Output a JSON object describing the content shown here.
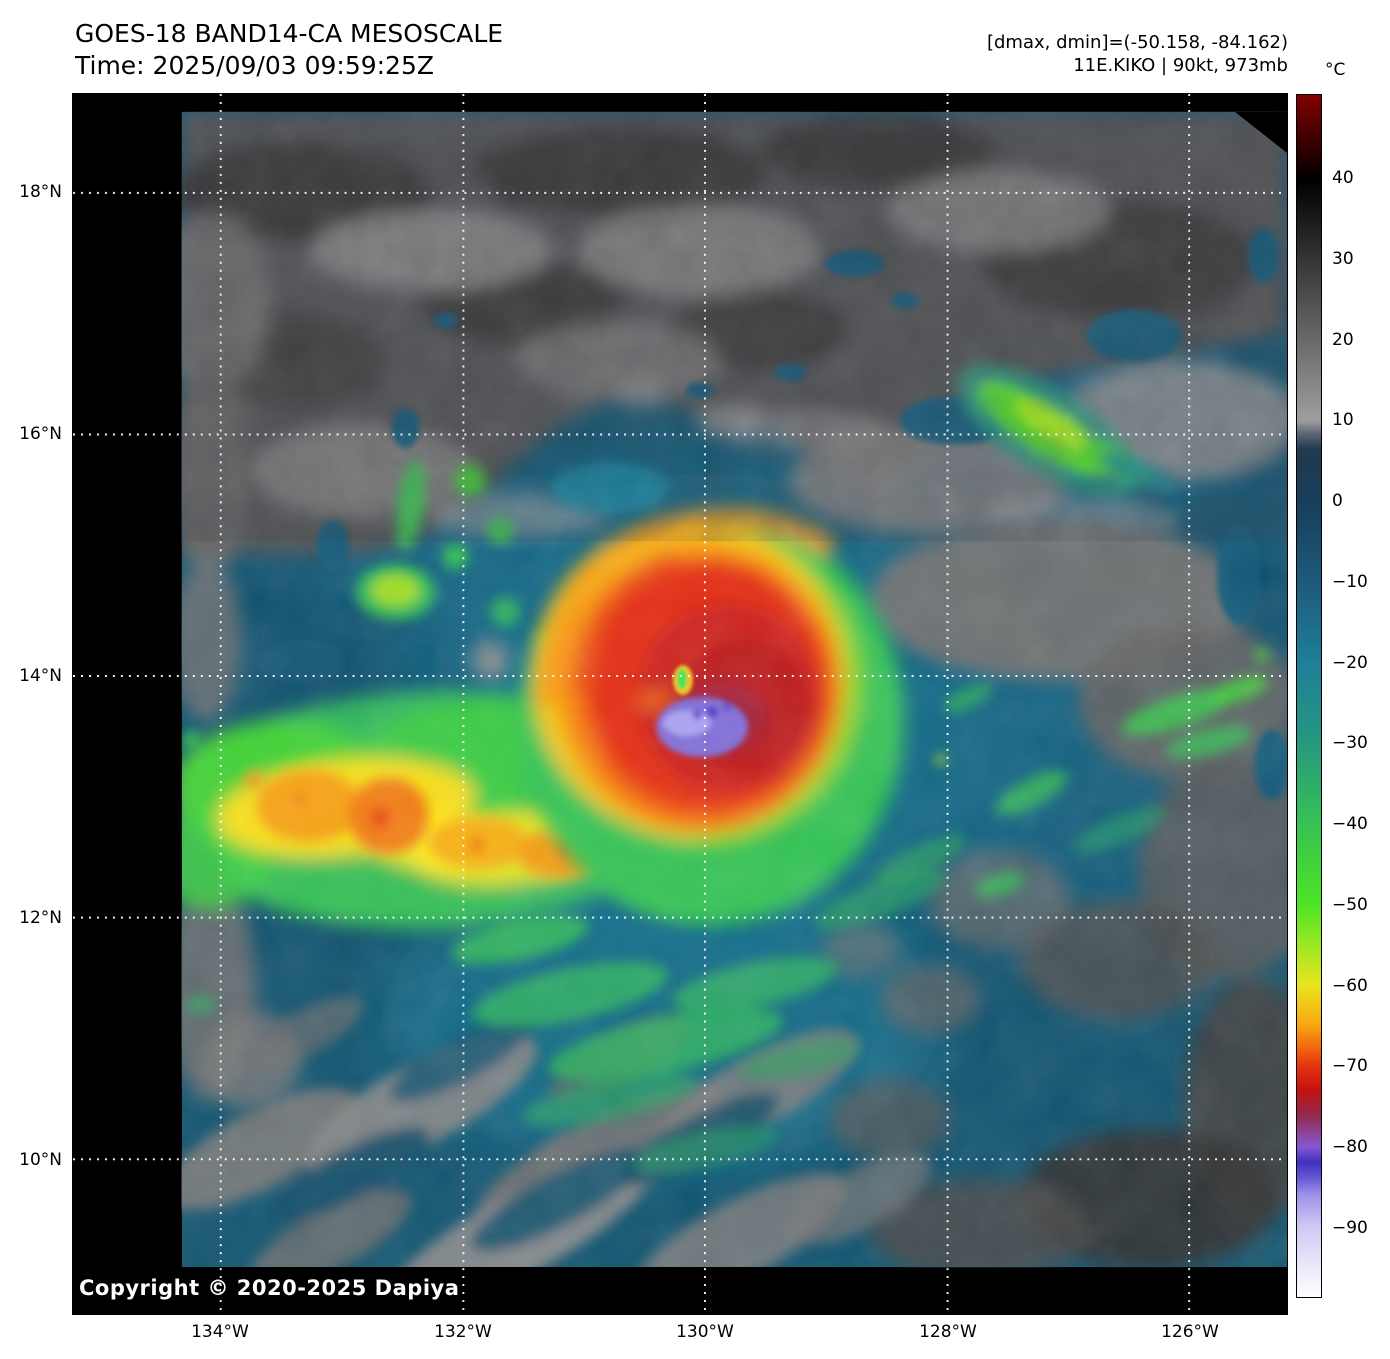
{
  "figure": {
    "title_line1": "GOES-18 BAND14-CA MESOSCALE",
    "title_line2": "Time: 2025/09/03 09:59:25Z",
    "stats_line": "[dmax, dmin]=(-50.158, -84.162)",
    "storm_line": "11E.KIKO | 90kt, 973mb",
    "copyright": "Copyright © 2020-2025 Dapiya"
  },
  "storm": {
    "id": "11E.KIKO",
    "intensity": "90kt",
    "pressure": "973mb",
    "dmax": -50.158,
    "dmin": -84.162,
    "satellite": "GOES-18",
    "band": "BAND14-CA",
    "sector": "MESOSCALE",
    "time_utc": "2025/09/03 09:59:25Z"
  },
  "axes": {
    "y_labels": [
      "18°N",
      "16°N",
      "14°N",
      "12°N",
      "10°N"
    ],
    "x_labels": [
      "134°W",
      "132°W",
      "130°W",
      "128°W",
      "126°W"
    ]
  },
  "colorbar": {
    "unit": "°C",
    "tick_labels": [
      "40",
      "30",
      "20",
      "10",
      "0",
      "−10",
      "−20",
      "−30",
      "−40",
      "−50",
      "−60",
      "−70",
      "−80",
      "−90"
    ],
    "gradient": [
      {
        "p": 0,
        "c": "#830000"
      },
      {
        "p": 7,
        "c": "#000000"
      },
      {
        "p": 27.1,
        "c": "#9e9e9e"
      },
      {
        "p": 28.2,
        "c": "#5a6472"
      },
      {
        "p": 29.5,
        "c": "#21394e"
      },
      {
        "p": 33.8,
        "c": "#163e5a"
      },
      {
        "p": 40.5,
        "c": "#1d5a7a"
      },
      {
        "p": 47.2,
        "c": "#1f7e99"
      },
      {
        "p": 53.9,
        "c": "#26987f"
      },
      {
        "p": 60.6,
        "c": "#37c153"
      },
      {
        "p": 67.3,
        "c": "#4ce426"
      },
      {
        "p": 70.7,
        "c": "#9ce823"
      },
      {
        "p": 74.1,
        "c": "#e9e41d"
      },
      {
        "p": 77.4,
        "c": "#f9a60f"
      },
      {
        "p": 80.8,
        "c": "#e73210"
      },
      {
        "p": 82.8,
        "c": "#c11310"
      },
      {
        "p": 84.8,
        "c": "#93284a"
      },
      {
        "p": 87.5,
        "c": "#8657d2"
      },
      {
        "p": 88.8,
        "c": "#4030bf"
      },
      {
        "p": 90.2,
        "c": "#6a5cd6"
      },
      {
        "p": 91.5,
        "c": "#9d92e8"
      },
      {
        "p": 94.2,
        "c": "#cfcaf4"
      },
      {
        "p": 100,
        "c": "#ffffff"
      }
    ]
  }
}
